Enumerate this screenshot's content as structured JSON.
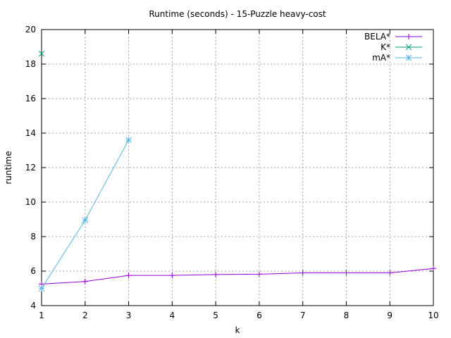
{
  "chart_data": {
    "type": "line",
    "title": "Runtime (seconds) - 15-Puzzle heavy-cost",
    "xlabel": "k",
    "ylabel": "runtime",
    "xlim": [
      1,
      10
    ],
    "ylim": [
      4,
      20
    ],
    "x_ticks": [
      1,
      2,
      3,
      4,
      5,
      6,
      7,
      8,
      9,
      10
    ],
    "y_ticks": [
      4,
      6,
      8,
      10,
      12,
      14,
      16,
      18,
      20
    ],
    "grid": true,
    "legend_position": "top-right",
    "series": [
      {
        "name": "BELA*",
        "marker": "plus",
        "color": "#9400d3",
        "x": [
          1,
          2,
          3,
          4,
          5,
          6,
          7,
          8,
          9,
          10
        ],
        "y": [
          5.25,
          5.4,
          5.75,
          5.75,
          5.8,
          5.82,
          5.9,
          5.9,
          5.9,
          6.15
        ]
      },
      {
        "name": "K*",
        "marker": "cross",
        "color": "#009e73",
        "x": [
          1
        ],
        "y": [
          18.6
        ]
      },
      {
        "name": "mA*",
        "marker": "star",
        "color": "#56b4e9",
        "x": [
          1,
          2,
          3
        ],
        "y": [
          5.0,
          8.95,
          13.6
        ]
      }
    ]
  }
}
